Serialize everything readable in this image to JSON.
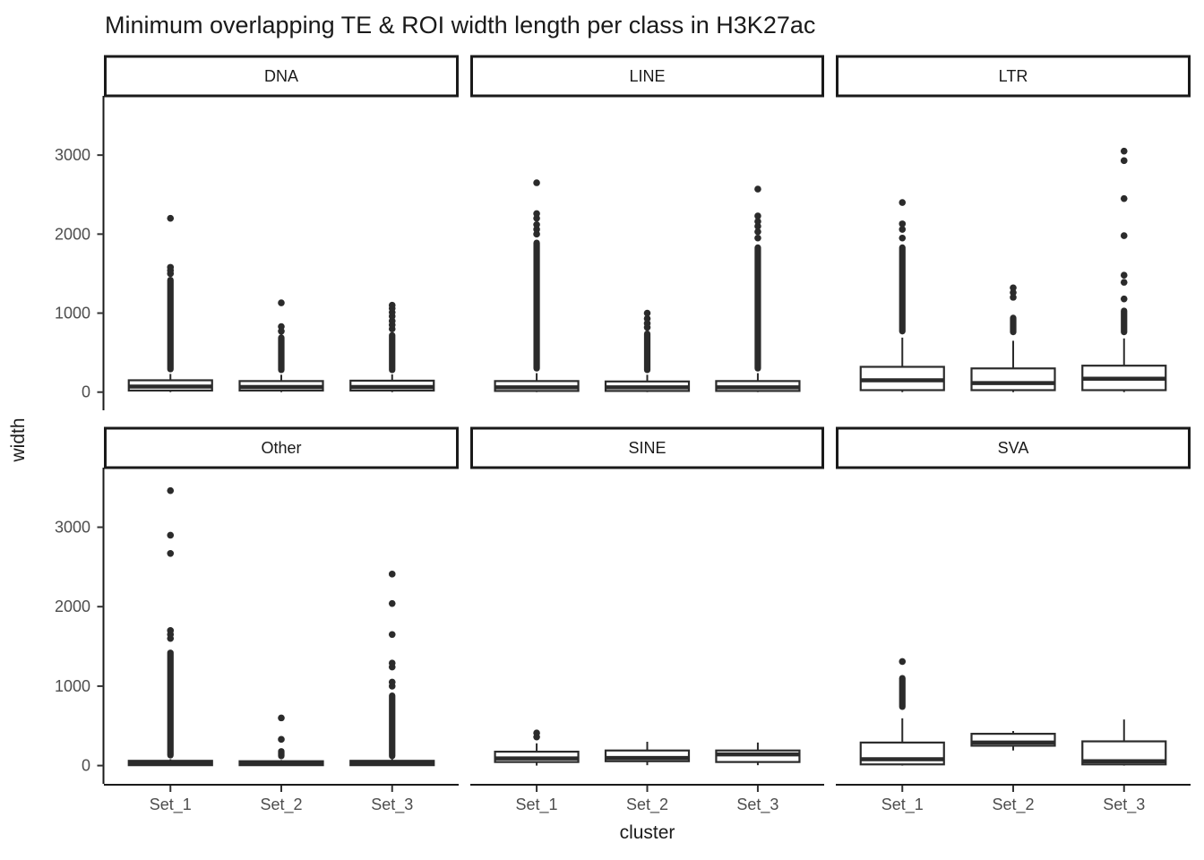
{
  "chart_data": {
    "type": "boxplot",
    "title": "Minimum overlapping TE & ROI width length per class in H3K27ac",
    "xlabel": "cluster",
    "ylabel": "width",
    "categories": [
      "Set_1",
      "Set_2",
      "Set_3"
    ],
    "y_ticks": [
      0,
      1000,
      2000,
      3000
    ],
    "ylim": [
      -230,
      3750
    ],
    "grid": false,
    "legend": "none",
    "facet_layout": {
      "rows": 2,
      "cols": 3
    },
    "facets": [
      {
        "label": "DNA",
        "boxes": [
          {
            "cluster": "Set_1",
            "q1": 20,
            "median": 70,
            "q3": 150,
            "whisker_low": 0,
            "whisker_high": 230,
            "outlier_runs": [
              [
                250,
                1460
              ]
            ],
            "outliers": [
              1500,
              1540,
              1580,
              2200
            ]
          },
          {
            "cluster": "Set_2",
            "q1": 20,
            "median": 65,
            "q3": 140,
            "whisker_low": 0,
            "whisker_high": 220,
            "outlier_runs": [
              [
                240,
                730
              ]
            ],
            "outliers": [
              770,
              830,
              1130
            ]
          },
          {
            "cluster": "Set_3",
            "q1": 20,
            "median": 65,
            "q3": 145,
            "whisker_low": 0,
            "whisker_high": 225,
            "outlier_runs": [
              [
                240,
                760
              ]
            ],
            "outliers": [
              800,
              850,
              900,
              960,
              1010,
              1060,
              1100
            ]
          }
        ]
      },
      {
        "label": "LINE",
        "boxes": [
          {
            "cluster": "Set_1",
            "q1": 15,
            "median": 60,
            "q3": 140,
            "whisker_low": 0,
            "whisker_high": 240,
            "outlier_runs": [
              [
                260,
                1930
              ]
            ],
            "outliers": [
              2000,
              2060,
              2120,
              2200,
              2260,
              2650
            ]
          },
          {
            "cluster": "Set_2",
            "q1": 15,
            "median": 60,
            "q3": 135,
            "whisker_low": 0,
            "whisker_high": 220,
            "outlier_runs": [
              [
                240,
                780
              ]
            ],
            "outliers": [
              820,
              870,
              930,
              1000
            ]
          },
          {
            "cluster": "Set_3",
            "q1": 15,
            "median": 60,
            "q3": 140,
            "whisker_low": 0,
            "whisker_high": 240,
            "outlier_runs": [
              [
                260,
                1870
              ]
            ],
            "outliers": [
              1950,
              2030,
              2100,
              2160,
              2230,
              2570
            ]
          }
        ]
      },
      {
        "label": "LTR",
        "boxes": [
          {
            "cluster": "Set_1",
            "q1": 25,
            "median": 150,
            "q3": 320,
            "whisker_low": 0,
            "whisker_high": 690,
            "outlier_runs": [
              [
                730,
                1870
              ]
            ],
            "outliers": [
              1950,
              2060,
              2130,
              2400
            ]
          },
          {
            "cluster": "Set_2",
            "q1": 25,
            "median": 115,
            "q3": 300,
            "whisker_low": 0,
            "whisker_high": 650,
            "outlier_runs": [
              [
                720,
                980
              ]
            ],
            "outliers": [
              1200,
              1260,
              1320
            ]
          },
          {
            "cluster": "Set_3",
            "q1": 25,
            "median": 170,
            "q3": 335,
            "whisker_low": 0,
            "whisker_high": 680,
            "outlier_runs": [
              [
                720,
                1070
              ]
            ],
            "outliers": [
              1180,
              1390,
              1480,
              1980,
              2450,
              2930,
              3050
            ]
          }
        ]
      },
      {
        "label": "Other",
        "boxes": [
          {
            "cluster": "Set_1",
            "q1": 5,
            "median": 30,
            "q3": 60,
            "whisker_low": 0,
            "whisker_high": 80,
            "outlier_runs": [
              [
                90,
                1460
              ]
            ],
            "outliers": [
              1600,
              1650,
              1700,
              2670,
              2900,
              3460
            ]
          },
          {
            "cluster": "Set_2",
            "q1": 5,
            "median": 30,
            "q3": 55,
            "whisker_low": 0,
            "whisker_high": 70,
            "outlier_runs": [
              [
                80,
                220
              ]
            ],
            "outliers": [
              330,
              600
            ]
          },
          {
            "cluster": "Set_3",
            "q1": 5,
            "median": 30,
            "q3": 60,
            "whisker_low": 0,
            "whisker_high": 80,
            "outlier_runs": [
              [
                80,
                920
              ]
            ],
            "outliers": [
              1000,
              1050,
              1240,
              1290,
              1650,
              2040,
              2410
            ]
          }
        ]
      },
      {
        "label": "SINE",
        "boxes": [
          {
            "cluster": "Set_1",
            "q1": 45,
            "median": 90,
            "q3": 175,
            "whisker_low": 0,
            "whisker_high": 280,
            "outlier_runs": [],
            "outliers": [
              360,
              410
            ]
          },
          {
            "cluster": "Set_2",
            "q1": 55,
            "median": 95,
            "q3": 190,
            "whisker_low": 5,
            "whisker_high": 300,
            "outlier_runs": [],
            "outliers": []
          },
          {
            "cluster": "Set_3",
            "q1": 45,
            "median": 140,
            "q3": 190,
            "whisker_low": 5,
            "whisker_high": 290,
            "outlier_runs": [],
            "outliers": []
          }
        ]
      },
      {
        "label": "SVA",
        "boxes": [
          {
            "cluster": "Set_1",
            "q1": 15,
            "median": 80,
            "q3": 290,
            "whisker_low": 0,
            "whisker_high": 595,
            "outlier_runs": [
              [
                700,
                1140
              ]
            ],
            "outliers": [
              1310
            ]
          },
          {
            "cluster": "Set_2",
            "q1": 250,
            "median": 290,
            "q3": 400,
            "whisker_low": 190,
            "whisker_high": 435,
            "outlier_runs": [],
            "outliers": []
          },
          {
            "cluster": "Set_3",
            "q1": 15,
            "median": 55,
            "q3": 305,
            "whisker_low": 0,
            "whisker_high": 580,
            "outlier_runs": [],
            "outliers": []
          }
        ]
      }
    ],
    "style": {
      "box_color": "#2b2b2b",
      "axis_color": "#1a1a1a",
      "tick_label_color": "#4d4d4d",
      "strip_border_color": "#1a1a1a",
      "background": "#ffffff"
    }
  }
}
